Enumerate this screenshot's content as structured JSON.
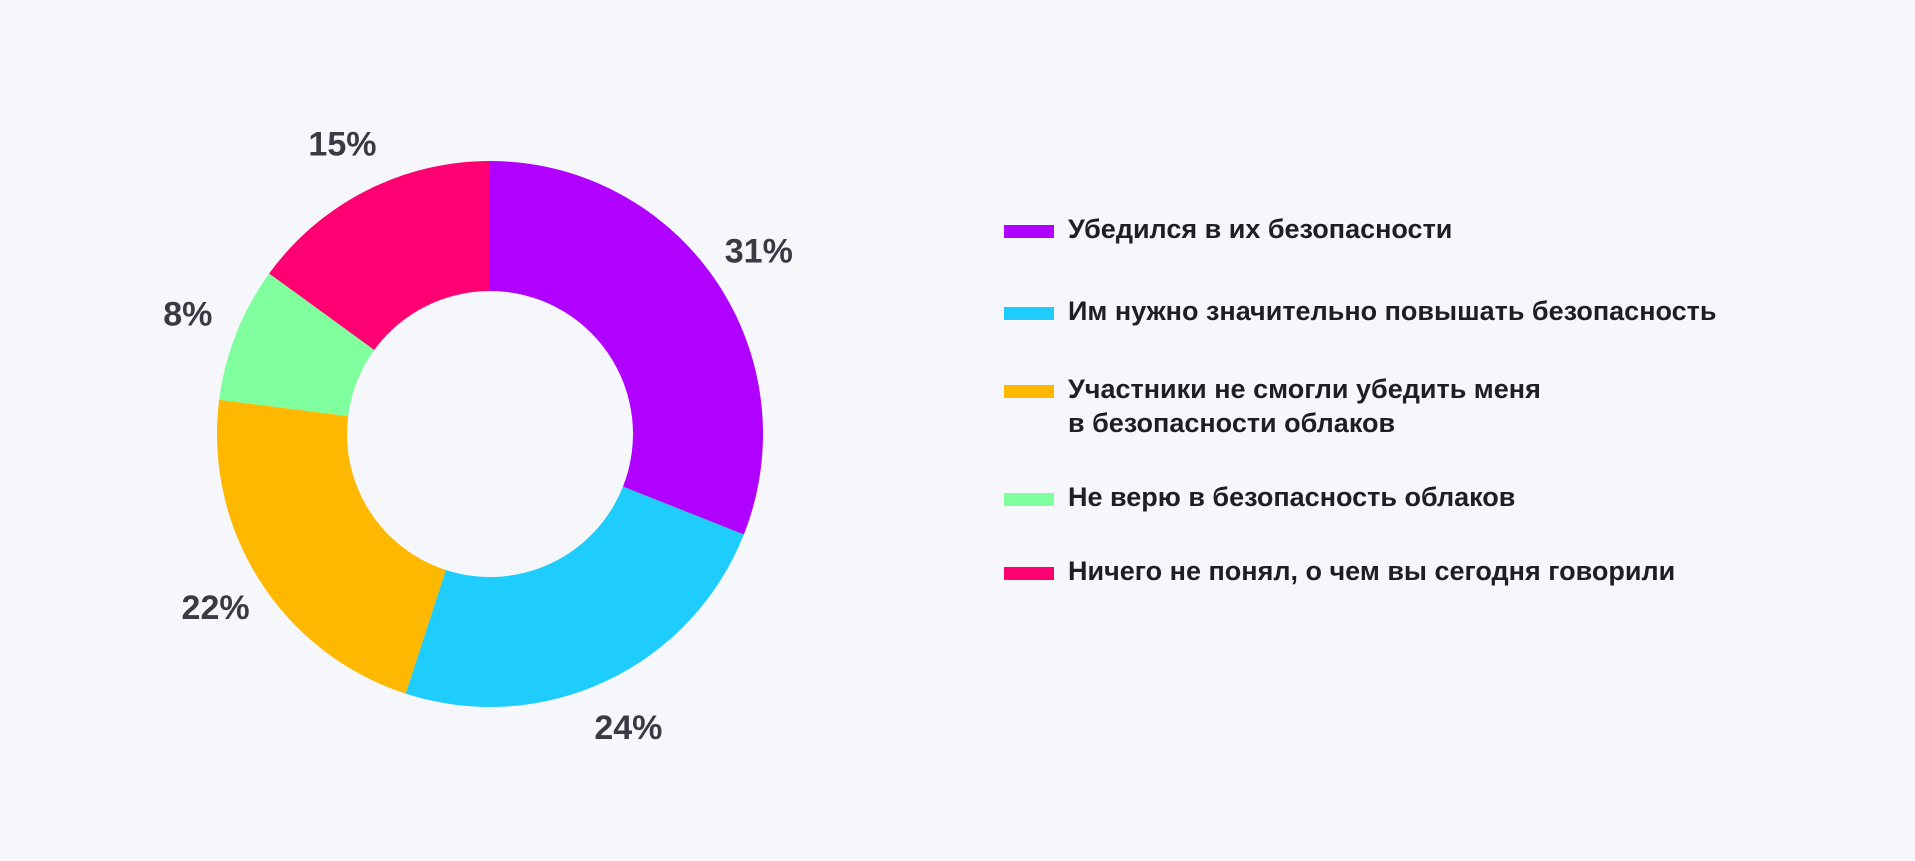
{
  "chart_data": {
    "type": "pie",
    "subtype": "donut",
    "title": "",
    "start_angle_deg": 0,
    "direction": "clockwise",
    "legend_position": "right",
    "slices": [
      {
        "label": "Убедился в их безопасности",
        "value": 31,
        "display": "31%",
        "color": "#b000ff"
      },
      {
        "label": "Им нужно значительно повышать безопасность",
        "value": 24,
        "display": "24%",
        "color": "#1ecdfc"
      },
      {
        "label": "Участники не смогли убедить меня в безопасности облаков",
        "value": 22,
        "display": "22%",
        "color": "#ffb800"
      },
      {
        "label": "Не верю в безопасность облаков",
        "value": 8,
        "display": "8%",
        "color": "#80ff9f"
      },
      {
        "label": "Ничего не понял, о чем вы сегодня говорили",
        "value": 15,
        "display": "15%",
        "color": "#ff0073"
      }
    ]
  },
  "legend": {
    "items": [
      {
        "lines": [
          "Убедился в их безопасности"
        ],
        "color": "#b000ff"
      },
      {
        "lines": [
          "Им нужно значительно повышать безопасность"
        ],
        "color": "#1ecdfc"
      },
      {
        "lines": [
          "Участники не смогли убедить меня",
          "в безопасности облаков"
        ],
        "color": "#ffb800"
      },
      {
        "lines": [
          "Не верю в безопасность облаков"
        ],
        "color": "#80ff9f"
      },
      {
        "lines": [
          "Ничего не понял, о чем вы сегодня говорили"
        ],
        "color": "#ff0073"
      }
    ]
  }
}
